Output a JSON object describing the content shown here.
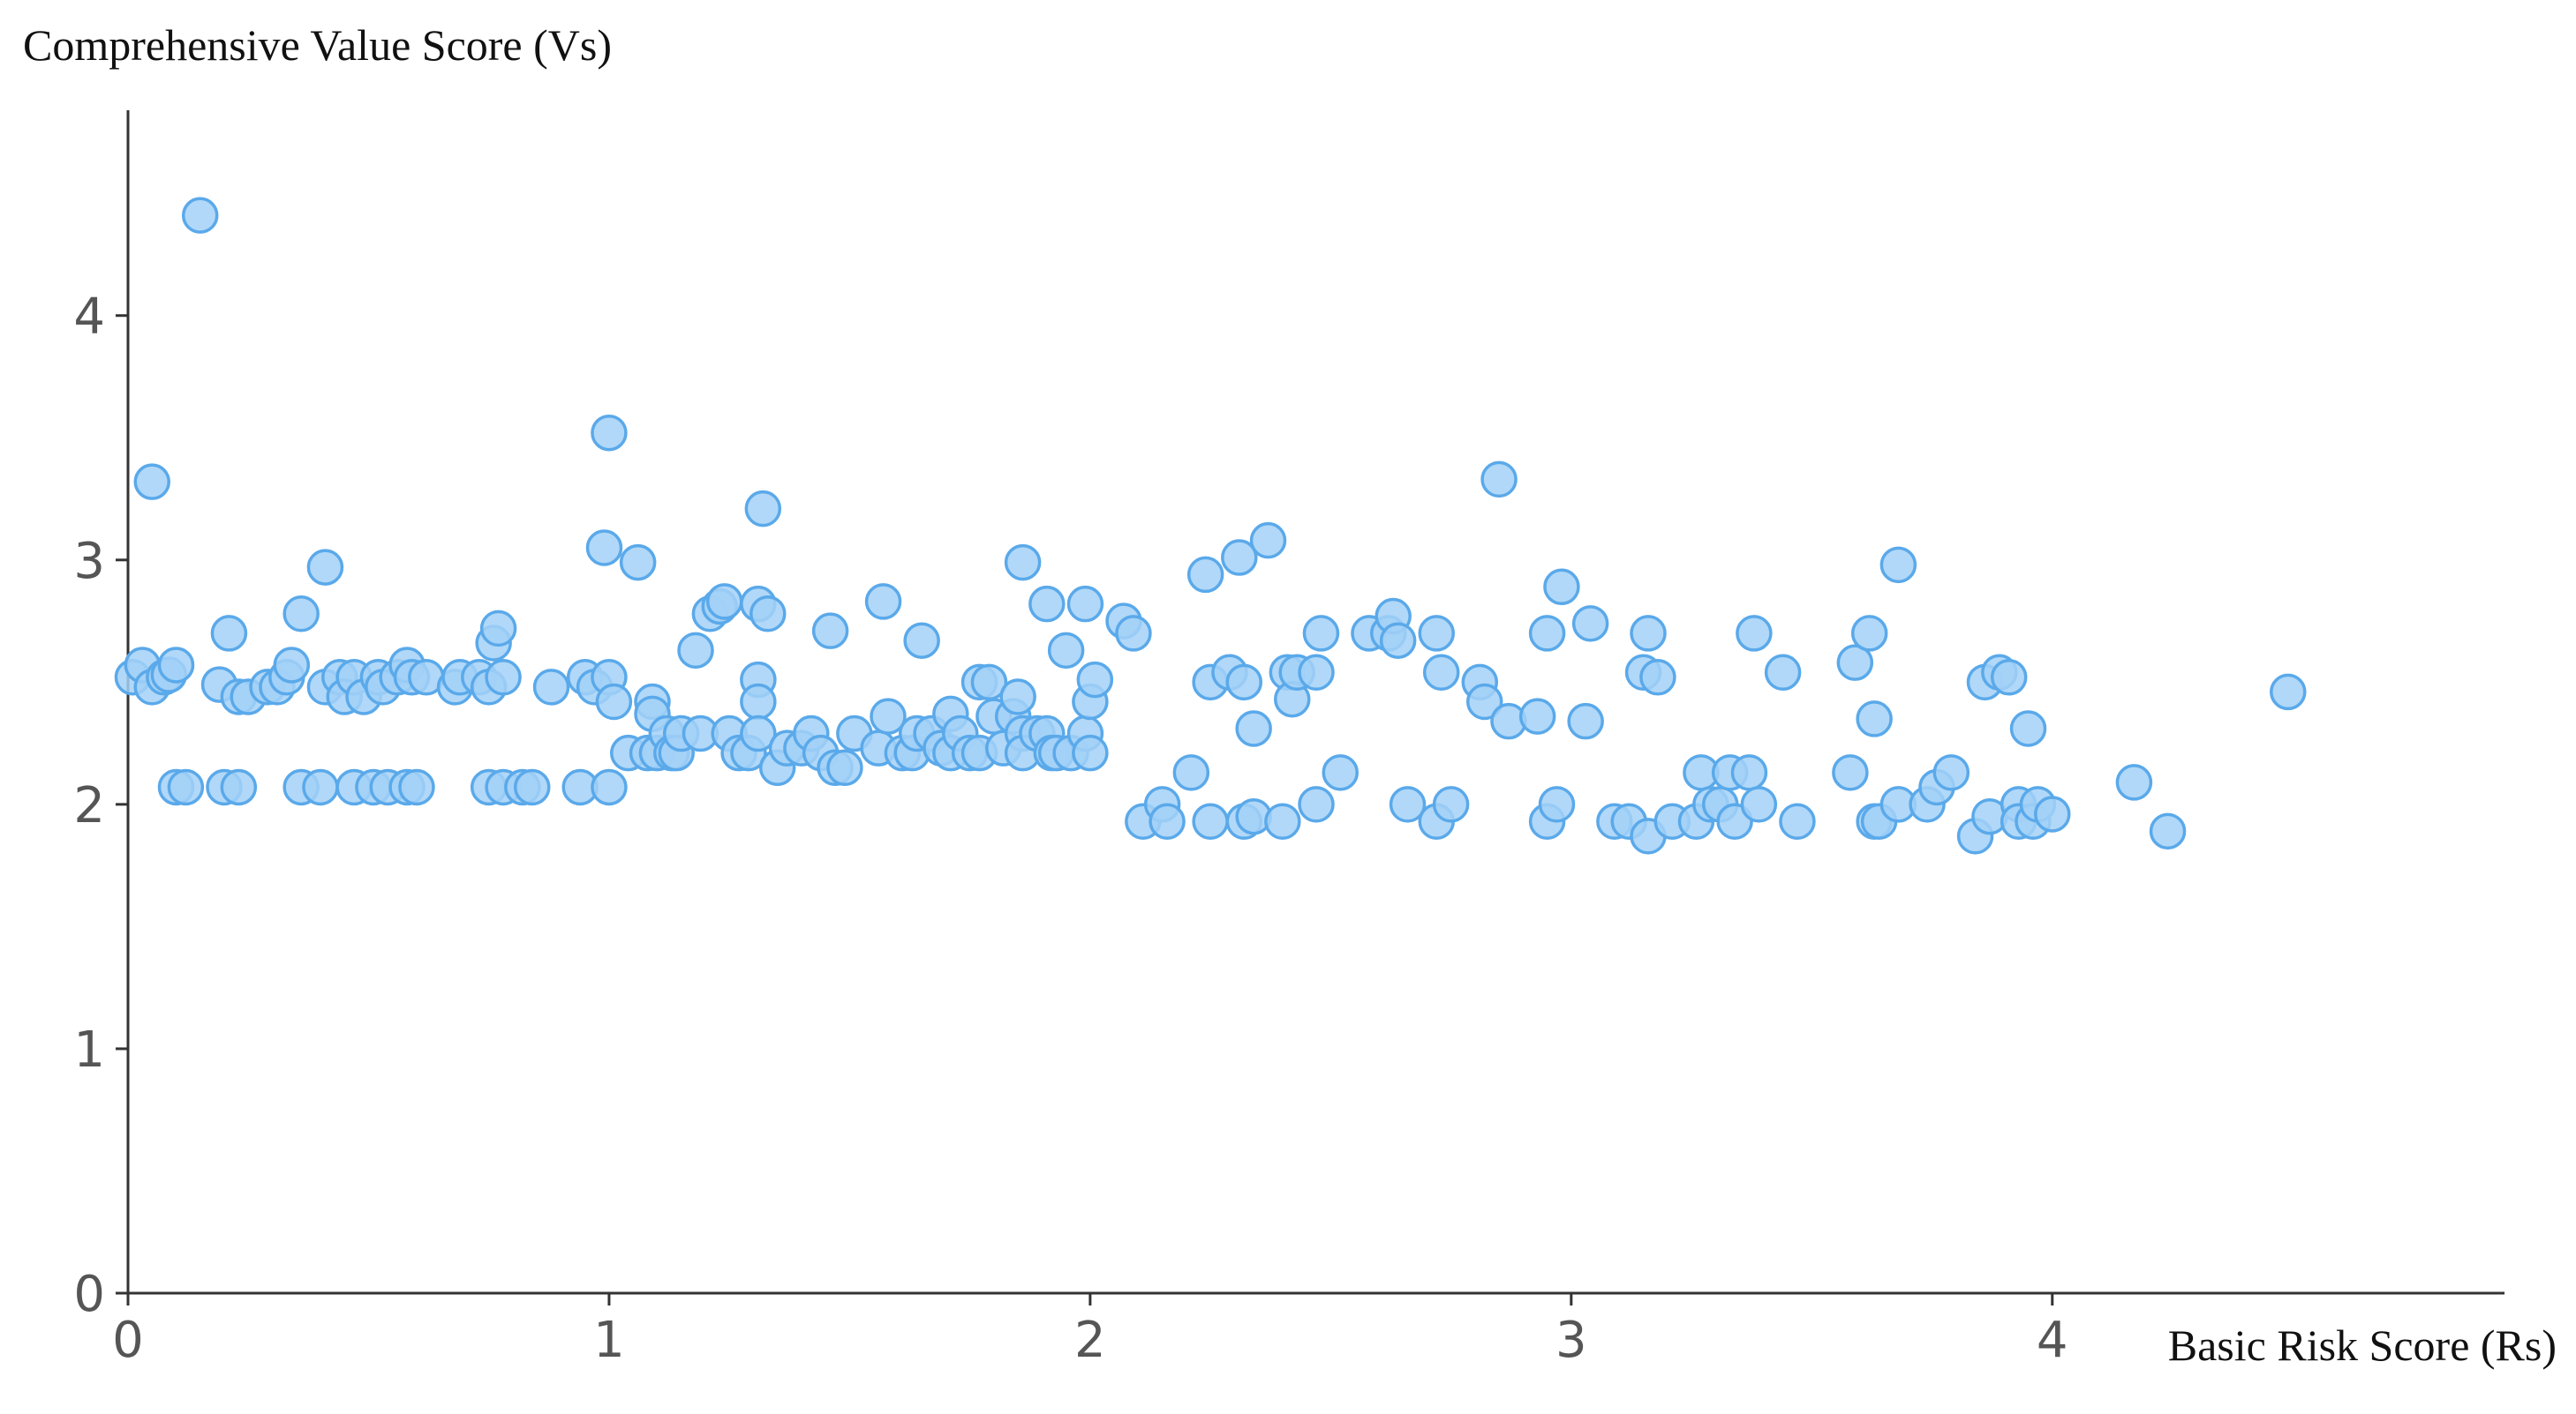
{
  "chart_data": {
    "type": "scatter",
    "y_label": "Comprehensive Value Score (Vs)",
    "x_label": "Basic Risk Score (Rs)",
    "xlim": [
      0,
      4.94
    ],
    "ylim": [
      0,
      4.84
    ],
    "xticks": [
      0,
      1,
      2,
      3,
      4
    ],
    "yticks": [
      0,
      1,
      2,
      3,
      4
    ],
    "color": "#a3d1f7",
    "edge_color": "#5aa9ea",
    "x": [
      0.01,
      0.03,
      0.05,
      0.05,
      0.075,
      0.085,
      0.1,
      0.1,
      0.12,
      0.15,
      0.19,
      0.21,
      0.2,
      0.23,
      0.23,
      0.25,
      0.29,
      0.31,
      0.33,
      0.34,
      0.36,
      0.36,
      0.4,
      0.41,
      0.41,
      0.44,
      0.45,
      0.47,
      0.47,
      0.49,
      0.51,
      0.52,
      0.53,
      0.54,
      0.56,
      0.58,
      0.58,
      0.6,
      0.59,
      0.62,
      0.68,
      0.69,
      0.73,
      0.75,
      0.75,
      0.76,
      0.77,
      0.78,
      0.78,
      0.82,
      0.84,
      0.88,
      0.94,
      0.95,
      0.97,
      0.99,
      1.0,
      1.0,
      1.0,
      1.01,
      1.04,
      1.06,
      1.08,
      1.09,
      1.09,
      1.1,
      1.12,
      1.13,
      1.14,
      1.15,
      1.18,
      1.19,
      1.21,
      1.23,
      1.24,
      1.25,
      1.27,
      1.29,
      1.31,
      1.31,
      1.31,
      1.31,
      1.32,
      1.33,
      1.35,
      1.37,
      1.4,
      1.42,
      1.44,
      1.46,
      1.47,
      1.49,
      1.51,
      1.56,
      1.57,
      1.58,
      1.61,
      1.63,
      1.64,
      1.65,
      1.67,
      1.69,
      1.71,
      1.71,
      1.73,
      1.75,
      1.77,
      1.77,
      1.79,
      1.8,
      1.82,
      1.84,
      1.85,
      1.86,
      1.86,
      1.86,
      1.89,
      1.91,
      1.91,
      1.92,
      1.93,
      1.95,
      1.96,
      1.99,
      1.99,
      2.0,
      2.0,
      2.01,
      2.07,
      2.09,
      2.11,
      2.15,
      2.16,
      2.21,
      2.24,
      2.25,
      2.25,
      2.29,
      2.31,
      2.32,
      2.32,
      2.34,
      2.34,
      2.37,
      2.4,
      2.41,
      2.42,
      2.43,
      2.47,
      2.47,
      2.48,
      2.52,
      2.58,
      2.62,
      2.63,
      2.64,
      2.66,
      2.72,
      2.72,
      2.73,
      2.75,
      2.81,
      2.82,
      2.85,
      2.87,
      2.93,
      2.95,
      2.95,
      2.97,
      2.98,
      3.03,
      3.04,
      3.09,
      3.12,
      3.15,
      3.16,
      3.16,
      3.18,
      3.21,
      3.26,
      3.27,
      3.29,
      3.31,
      3.33,
      3.34,
      3.37,
      3.38,
      3.39,
      3.44,
      3.47,
      3.58,
      3.59,
      3.62,
      3.63,
      3.63,
      3.64,
      3.68,
      3.68,
      3.74,
      3.76,
      3.79,
      3.84,
      3.86,
      3.87,
      3.89,
      3.91,
      3.93,
      3.93,
      3.95,
      3.96,
      3.97,
      4.0,
      4.17,
      4.24,
      4.49
    ],
    "y": [
      2.52,
      2.57,
      2.48,
      3.32,
      2.52,
      2.53,
      2.57,
      2.07,
      2.07,
      4.41,
      2.49,
      2.7,
      2.07,
      2.07,
      2.44,
      2.44,
      2.48,
      2.48,
      2.52,
      2.57,
      2.78,
      2.07,
      2.07,
      2.97,
      2.48,
      2.52,
      2.44,
      2.52,
      2.07,
      2.44,
      2.07,
      2.52,
      2.48,
      2.07,
      2.52,
      2.57,
      2.07,
      2.07,
      2.52,
      2.52,
      2.48,
      2.52,
      2.52,
      2.48,
      2.07,
      2.66,
      2.72,
      2.52,
      2.07,
      2.07,
      2.07,
      2.48,
      2.07,
      2.52,
      2.48,
      3.05,
      3.52,
      2.52,
      2.07,
      2.42,
      2.21,
      2.99,
      2.21,
      2.42,
      2.37,
      2.21,
      2.29,
      2.21,
      2.21,
      2.29,
      2.63,
      2.29,
      2.78,
      2.81,
      2.83,
      2.29,
      2.21,
      2.21,
      2.51,
      2.82,
      2.42,
      2.29,
      3.21,
      2.78,
      2.15,
      2.23,
      2.23,
      2.29,
      2.21,
      2.71,
      2.15,
      2.15,
      2.29,
      2.23,
      2.83,
      2.36,
      2.21,
      2.21,
      2.29,
      2.67,
      2.29,
      2.23,
      2.21,
      2.37,
      2.29,
      2.21,
      2.21,
      2.5,
      2.5,
      2.36,
      2.23,
      2.36,
      2.44,
      2.99,
      2.29,
      2.21,
      2.29,
      2.29,
      2.82,
      2.21,
      2.21,
      2.63,
      2.21,
      2.29,
      2.82,
      2.42,
      2.21,
      2.51,
      2.75,
      2.7,
      1.93,
      2.0,
      1.93,
      2.13,
      2.94,
      2.5,
      1.93,
      2.54,
      3.01,
      1.93,
      2.5,
      2.31,
      1.95,
      3.08,
      1.93,
      2.54,
      2.43,
      2.54,
      2.54,
      2.0,
      2.7,
      2.13,
      2.7,
      2.7,
      2.77,
      2.67,
      2.0,
      1.93,
      2.7,
      2.54,
      2.0,
      2.5,
      2.42,
      3.33,
      2.34,
      2.36,
      2.7,
      1.93,
      2.0,
      2.89,
      2.34,
      2.74,
      1.93,
      1.93,
      2.54,
      2.7,
      1.87,
      2.52,
      1.93,
      1.93,
      2.13,
      2.0,
      2.0,
      2.13,
      1.93,
      2.13,
      2.7,
      2.0,
      2.54,
      1.93,
      2.13,
      2.58,
      2.7,
      2.35,
      1.93,
      1.93,
      2.98,
      2.0,
      2.0,
      2.07,
      2.13,
      1.87,
      2.5,
      1.95,
      2.54,
      2.52,
      2.0,
      1.93,
      2.31,
      1.93,
      2.0,
      1.96,
      2.09,
      1.89,
      2.46
    ]
  }
}
